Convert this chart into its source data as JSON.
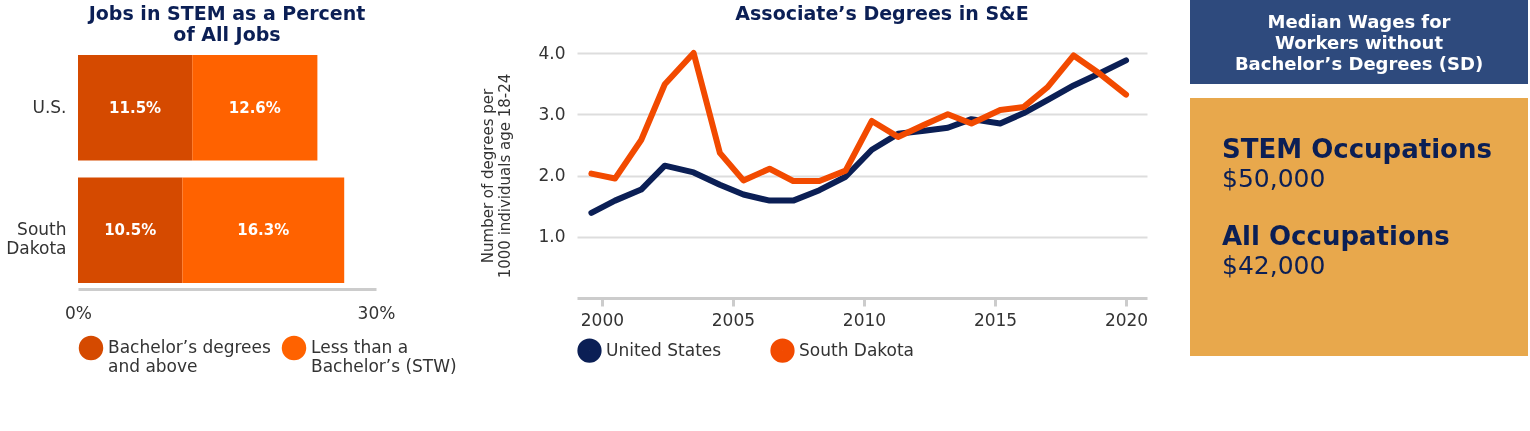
{
  "chart_data": [
    {
      "type": "bar",
      "title": "Jobs in STEM as a Percent of All Jobs",
      "orientation": "horizontal",
      "stacked": true,
      "categories": [
        "U.S.",
        "South Dakota"
      ],
      "xlim": [
        0,
        30
      ],
      "xticks": [
        {
          "value": 0,
          "label": "0%"
        },
        {
          "value": 30,
          "label": "30%"
        }
      ],
      "legend": "bottom",
      "series": [
        {
          "name": "Bachelor’s degrees and above",
          "color": "#d54a00",
          "values": [
            11.5,
            10.5
          ],
          "value_labels": [
            "11.5%",
            "10.5%"
          ]
        },
        {
          "name": "Less than a Bachelor’s (STW)",
          "color": "#ff6200",
          "values": [
            12.6,
            16.3
          ],
          "value_labels": [
            "12.6%",
            "16.3%"
          ]
        }
      ]
    },
    {
      "type": "line",
      "title": "Associate’s Degrees in S&E",
      "ylabel": "Number of degrees per 1000 individuals age 18-24",
      "xlim": [
        1999.05,
        2020.8
      ],
      "xticks": [
        2000,
        2005,
        2010,
        2015,
        2020
      ],
      "ylim": [
        0,
        4.0
      ],
      "yticks": [
        {
          "value": 1,
          "label": "1.0"
        },
        {
          "value": 2,
          "label": "2.0"
        },
        {
          "value": 3,
          "label": "3.0"
        },
        {
          "value": 4,
          "label": "4.0"
        }
      ],
      "grid": "y",
      "legend": "bottom",
      "x": [
        1999.6,
        2000.5,
        2001.5,
        2002.4,
        2003.5,
        2004.5,
        2005.4,
        2006.4,
        2007.3,
        2008.3,
        2009.3,
        2010.3,
        2011.3,
        2012.3,
        2013.2,
        2014.1,
        2015.2,
        2016.1,
        2017.0,
        2018.0,
        2019.0,
        2020.0
      ],
      "series": [
        {
          "name": "United States",
          "color": "#0b1f55",
          "values": [
            1.39,
            1.59,
            1.77,
            2.16,
            2.05,
            1.85,
            1.69,
            1.59,
            1.59,
            1.76,
            1.98,
            2.42,
            2.68,
            2.73,
            2.78,
            2.92,
            2.85,
            3.02,
            3.23,
            3.47,
            3.67,
            3.88
          ]
        },
        {
          "name": "South Dakota",
          "color": "#f24a00",
          "values": [
            2.03,
            1.95,
            2.58,
            3.49,
            4.0,
            2.37,
            1.92,
            2.11,
            1.91,
            1.91,
            2.08,
            2.89,
            2.63,
            2.83,
            3.0,
            2.85,
            3.07,
            3.12,
            3.44,
            3.96,
            3.66,
            3.32
          ]
        }
      ]
    },
    {
      "type": "other",
      "title": "Median Wages for Workers without Bachelor’s Degrees (SD)",
      "annotations": [
        "STEM Occupations",
        "$50,000",
        "All Occupations",
        "$42,000"
      ]
    }
  ]
}
